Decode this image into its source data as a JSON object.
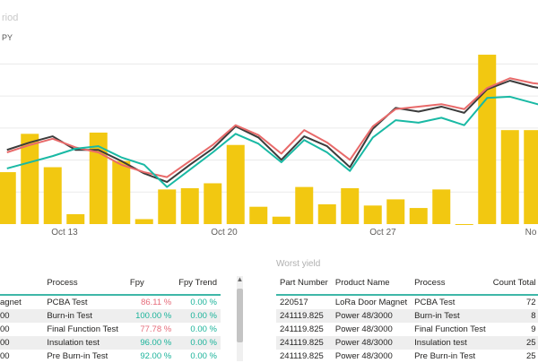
{
  "chart_title_fragment": "riod",
  "legend_fragment": "PY",
  "chart_data": {
    "type": "bar",
    "x_ticks": [
      "Oct 13",
      "Oct 20",
      "Oct 27",
      "No"
    ],
    "bars": [
      42,
      73,
      46,
      8,
      74,
      51,
      4,
      28,
      29,
      33,
      64,
      14,
      6,
      30,
      16,
      29,
      15,
      20,
      13,
      28,
      0,
      137,
      76,
      76,
      68,
      38
    ],
    "series": [
      {
        "color": "#3c3c3c",
        "values": [
          60,
          66,
          71,
          60,
          60,
          51,
          41,
          34,
          48,
          61,
          79,
          70,
          52,
          71,
          63,
          46,
          77,
          94,
          91,
          95,
          90,
          109,
          116,
          111,
          108,
          103
        ]
      },
      {
        "color": "#e86a6a",
        "values": [
          58,
          64,
          69,
          62,
          58,
          48,
          42,
          38,
          51,
          64,
          80,
          72,
          57,
          76,
          66,
          52,
          79,
          93,
          95,
          97,
          93,
          110,
          118,
          114,
          112,
          105
        ]
      },
      {
        "color": "#19b9a4",
        "values": [
          45,
          50,
          55,
          61,
          63,
          54,
          48,
          30,
          44,
          58,
          73,
          65,
          50,
          68,
          58,
          43,
          70,
          84,
          82,
          86,
          80,
          102,
          103,
          98,
          93,
          88
        ]
      }
    ]
  },
  "left_table": {
    "headers": [
      "",
      "Process",
      "Fpy",
      "Fpy Trend"
    ],
    "rows": [
      {
        "part": "agnet",
        "process": "PCBA Test",
        "fpy": "86.11 %",
        "fpy_bad": true,
        "trend": "0.00 %"
      },
      {
        "part": "00",
        "process": "Burn-in Test",
        "fpy": "100.00 %",
        "fpy_bad": false,
        "trend": "0.00 %"
      },
      {
        "part": "00",
        "process": "Final Function Test",
        "fpy": "77.78 %",
        "fpy_bad": true,
        "trend": "0.00 %"
      },
      {
        "part": "00",
        "process": "Insulation test",
        "fpy": "96.00 %",
        "fpy_bad": false,
        "trend": "0.00 %"
      },
      {
        "part": "00",
        "process": "Pre Burn-in Test",
        "fpy": "92.00 %",
        "fpy_bad": false,
        "trend": "0.00 %"
      }
    ]
  },
  "worst_yield": {
    "title": "Worst yield",
    "headers": [
      "Part Number",
      "Product Name",
      "Process",
      "Count Total"
    ],
    "rows": [
      {
        "part": "220517",
        "product": "LoRa Door Magnet",
        "process": "PCBA Test",
        "count": "72"
      },
      {
        "part": "241119.825",
        "product": "Power 48/3000",
        "process": "Burn-in Test",
        "count": "8"
      },
      {
        "part": "241119.825",
        "product": "Power 48/3000",
        "process": "Final Function Test",
        "count": "9"
      },
      {
        "part": "241119.825",
        "product": "Power 48/3000",
        "process": "Insulation test",
        "count": "25"
      },
      {
        "part": "241119.825",
        "product": "Power 48/3000",
        "process": "Pre Burn-in Test",
        "count": "25"
      }
    ]
  }
}
